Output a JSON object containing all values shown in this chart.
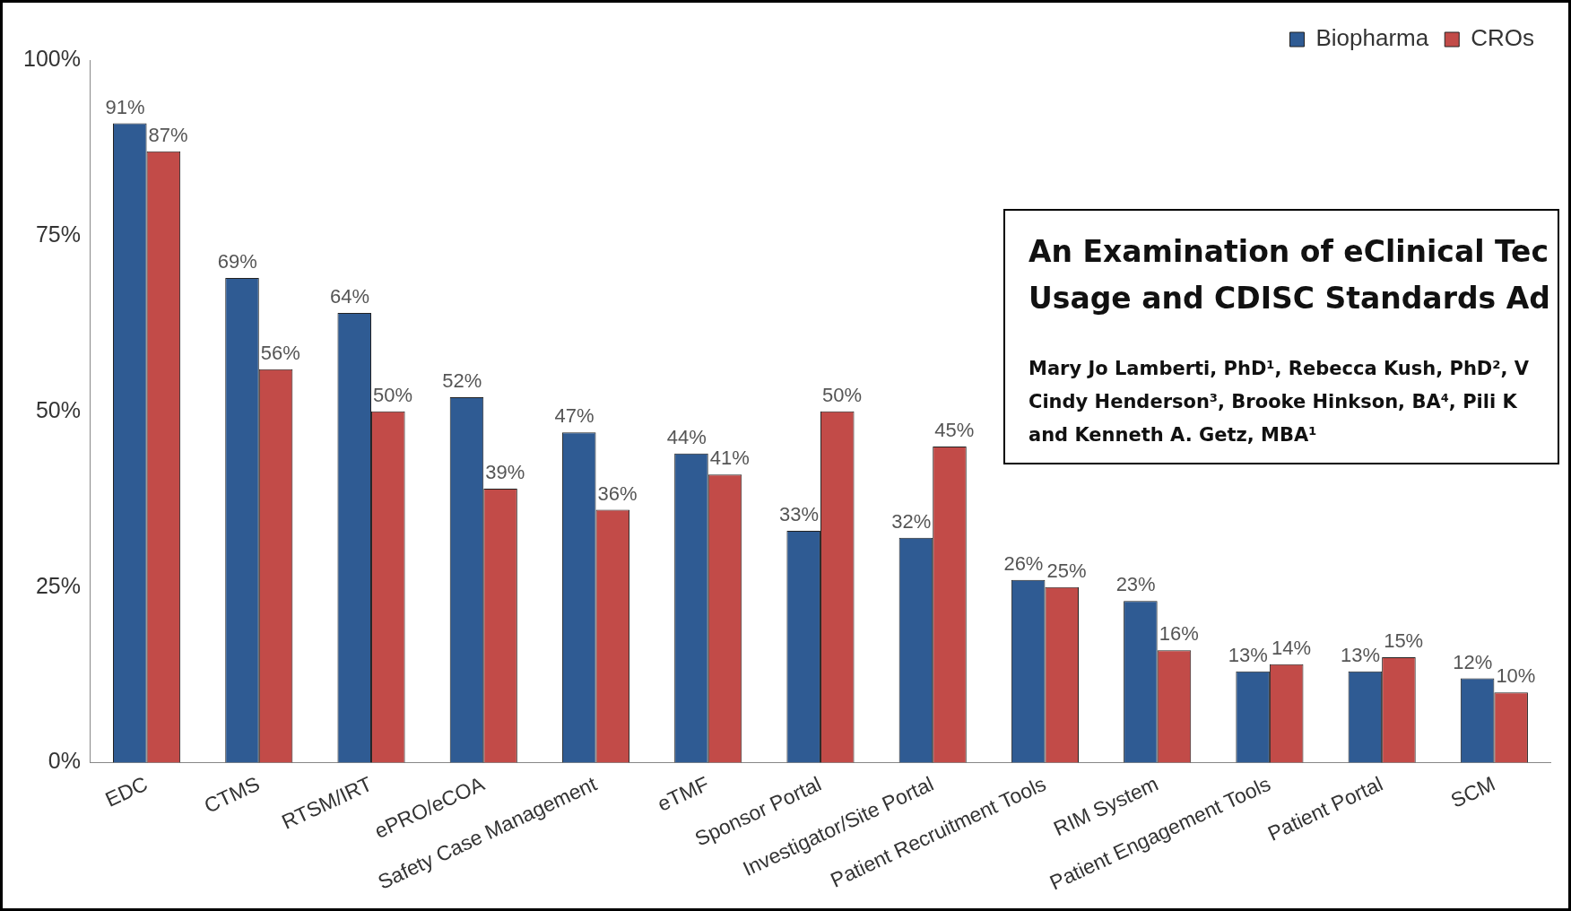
{
  "chart_data": {
    "type": "bar",
    "categories": [
      "EDC",
      "CTMS",
      "RTSM/IRT",
      "ePRO/eCOA",
      "Safety Case Management",
      "eTMF",
      "Sponsor Portal",
      "Investigator/Site Portal",
      "Patient Recruitment Tools",
      "RIM System",
      "Patient Engagement Tools",
      "Patient Portal",
      "SCM"
    ],
    "series": [
      {
        "name": "Biopharma",
        "color": "#2f5b93",
        "values": [
          91,
          69,
          64,
          52,
          47,
          44,
          33,
          32,
          26,
          23,
          13,
          13,
          12
        ],
        "value_labels": [
          "91%",
          "69%",
          "64%",
          "52%",
          "47%",
          "44%",
          "33%",
          "32%",
          "26%",
          "23%",
          "13%",
          "13%",
          "12%"
        ]
      },
      {
        "name": "CROs",
        "color": "#c24b48",
        "values": [
          87,
          56,
          50,
          39,
          36,
          41,
          50,
          45,
          25,
          16,
          14,
          15,
          10
        ],
        "value_labels": [
          "87%",
          "56%",
          "50%",
          "39%",
          "36%",
          "41%",
          "50%",
          "45%",
          "25%",
          "16%",
          "14%",
          "15%",
          "10%"
        ]
      }
    ],
    "ylim": [
      0,
      100
    ],
    "yticks": [
      {
        "value": 0,
        "label": "0%"
      },
      {
        "value": 25,
        "label": "25%"
      },
      {
        "value": 50,
        "label": "50%"
      },
      {
        "value": 75,
        "label": "75%"
      },
      {
        "value": 100,
        "label": "100%"
      }
    ],
    "grid": false,
    "legend": "top right",
    "annotations": [
      "An Examination of eClinical Tec",
      "Usage and CDISC Standards Ad",
      "Mary Jo Lamberti, PhD¹, Rebecca Kush, PhD², V",
      "Cindy Henderson³, Brooke Hinkson, BA⁴, Pili K",
      "and Kenneth A. Getz, MBA¹"
    ]
  }
}
